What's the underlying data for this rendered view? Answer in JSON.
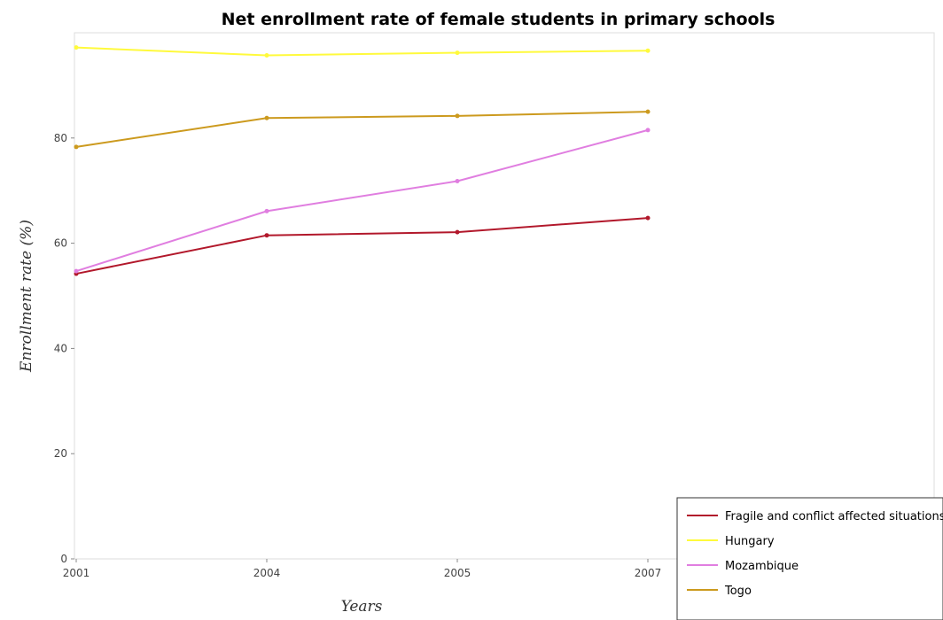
{
  "chart_data": {
    "type": "line",
    "title": "Net enrollment rate of female students in primary schools",
    "xlabel": "Years",
    "ylabel": "Enrollment rate (%)",
    "categories": [
      "2001",
      "2004",
      "2005",
      "2007"
    ],
    "yticks": [
      "0",
      "20",
      "40",
      "60",
      "80"
    ],
    "ylim": [
      0,
      100
    ],
    "grid": false,
    "legend_position": "bottom-right",
    "series": [
      {
        "name": "Fragile and conflict affected situations",
        "color": "#b2182b",
        "values": [
          54.2,
          61.5,
          62.1,
          64.8
        ]
      },
      {
        "name": "Hungary",
        "color": "#fffa3c",
        "values": [
          97.2,
          95.7,
          96.2,
          96.6
        ]
      },
      {
        "name": "Mozambique",
        "color": "#e07ee0",
        "values": [
          54.7,
          66.1,
          71.8,
          81.5
        ]
      },
      {
        "name": "Togo",
        "color": "#cc9a1e",
        "values": [
          78.3,
          83.8,
          84.2,
          85.0
        ]
      }
    ]
  }
}
